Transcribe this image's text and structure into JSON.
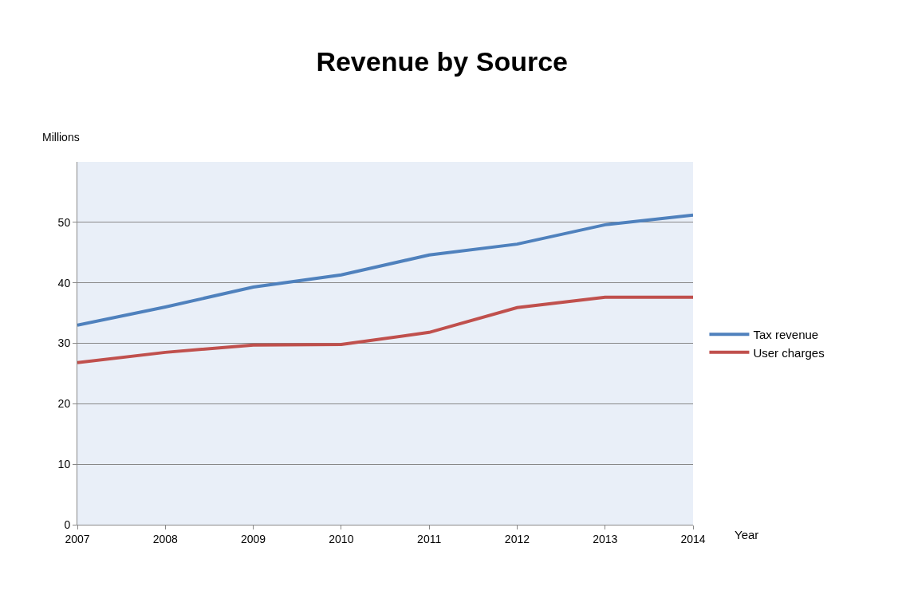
{
  "chart_data": {
    "type": "line",
    "title": "Revenue by Source",
    "xlabel": "Year",
    "ylabel": "Millions",
    "x": [
      2007,
      2008,
      2009,
      2010,
      2011,
      2012,
      2013,
      2014
    ],
    "series": [
      {
        "name": "Tax revenue",
        "color": "#4f81bd",
        "values": [
          33.0,
          36.0,
          39.3,
          41.3,
          44.6,
          46.4,
          49.6,
          51.2
        ]
      },
      {
        "name": "User charges",
        "color": "#c0504d",
        "values": [
          26.8,
          28.5,
          29.7,
          29.8,
          31.8,
          35.9,
          37.6,
          37.6
        ]
      }
    ],
    "xlim": [
      2007,
      2014
    ],
    "xticks": [
      2007,
      2008,
      2009,
      2010,
      2011,
      2012,
      2013,
      2014
    ],
    "ylim": [
      0,
      60
    ],
    "yticks": [
      0,
      10,
      20,
      30,
      40,
      50
    ],
    "grid": "y",
    "legend": "right",
    "marker": "none",
    "line_style": "solid"
  }
}
